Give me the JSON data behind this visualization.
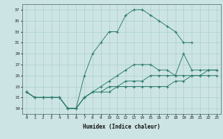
{
  "xlabel": "Humidex (Indice chaleur)",
  "background_color": "#cde4e4",
  "grid_color": "#aacece",
  "line_color": "#2e7d6e",
  "xlim": [
    -0.5,
    23.5
  ],
  "ylim": [
    18,
    38
  ],
  "yticks": [
    19,
    21,
    23,
    25,
    27,
    29,
    31,
    33,
    35,
    37
  ],
  "xticks": [
    0,
    1,
    2,
    3,
    4,
    5,
    6,
    7,
    8,
    9,
    10,
    11,
    12,
    13,
    14,
    15,
    16,
    17,
    18,
    19,
    20,
    21,
    22,
    23
  ],
  "series": [
    {
      "x": [
        0,
        1,
        2,
        3,
        4,
        5,
        6,
        7,
        8,
        9,
        10,
        11,
        12,
        13,
        14,
        15,
        16,
        17,
        18,
        19,
        20
      ],
      "y": [
        22,
        21,
        21,
        21,
        21,
        19,
        19,
        25,
        29,
        31,
        33,
        33,
        36,
        37,
        37,
        36,
        35,
        34,
        33,
        31,
        31
      ]
    },
    {
      "x": [
        0,
        1,
        2,
        3,
        4,
        5,
        6,
        7,
        8,
        9,
        10,
        11,
        12,
        13,
        14,
        15,
        16,
        17,
        18,
        19,
        20,
        21,
        22,
        23
      ],
      "y": [
        22,
        21,
        21,
        21,
        21,
        19,
        19,
        21,
        22,
        23,
        24,
        25,
        26,
        27,
        27,
        27,
        26,
        26,
        25,
        29,
        26,
        26,
        26,
        26
      ]
    },
    {
      "x": [
        0,
        1,
        2,
        3,
        4,
        5,
        6,
        7,
        8,
        9,
        10,
        11,
        12,
        13,
        14,
        15,
        16,
        17,
        18,
        19,
        20,
        21,
        22,
        23
      ],
      "y": [
        22,
        21,
        21,
        21,
        21,
        19,
        19,
        21,
        22,
        22,
        23,
        23,
        24,
        24,
        24,
        25,
        25,
        25,
        25,
        25,
        25,
        25,
        26,
        26
      ]
    },
    {
      "x": [
        0,
        1,
        2,
        3,
        4,
        5,
        6,
        7,
        8,
        9,
        10,
        11,
        12,
        13,
        14,
        15,
        16,
        17,
        18,
        19,
        20,
        21,
        22,
        23
      ],
      "y": [
        22,
        21,
        21,
        21,
        21,
        19,
        19,
        21,
        22,
        22,
        22,
        23,
        23,
        23,
        23,
        23,
        23,
        23,
        24,
        24,
        25,
        25,
        25,
        25
      ]
    }
  ]
}
